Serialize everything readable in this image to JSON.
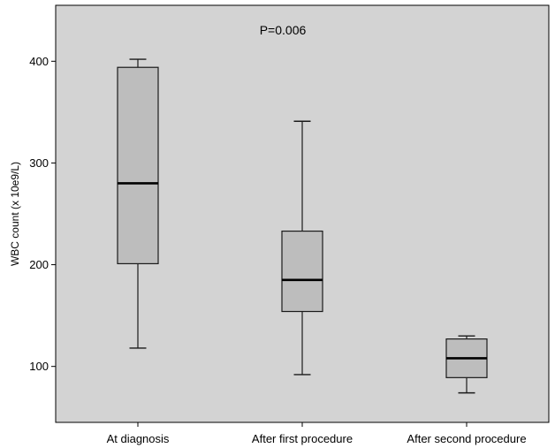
{
  "chart_data": {
    "type": "box",
    "title": "",
    "annotation": "P=0.006",
    "xlabel": "",
    "ylabel": "WBC count (x 10e9/L)",
    "ylim": [
      45,
      455
    ],
    "yticks": [
      100,
      200,
      300,
      400
    ],
    "grid": false,
    "colors": {
      "plot_background": "#d3d3d3",
      "box_fill": "#bdbdbd",
      "line": "#1a1a1a"
    },
    "categories": [
      "At diagnosis",
      "After first procedure",
      "After second procedure"
    ],
    "boxes": [
      {
        "whisker_low": 118,
        "q1": 201,
        "median": 280,
        "q3": 394,
        "whisker_high": 402
      },
      {
        "whisker_low": 92,
        "q1": 154,
        "median": 185,
        "q3": 233,
        "whisker_high": 341
      },
      {
        "whisker_low": 74,
        "q1": 89,
        "median": 108,
        "q3": 127,
        "whisker_high": 130
      }
    ]
  }
}
